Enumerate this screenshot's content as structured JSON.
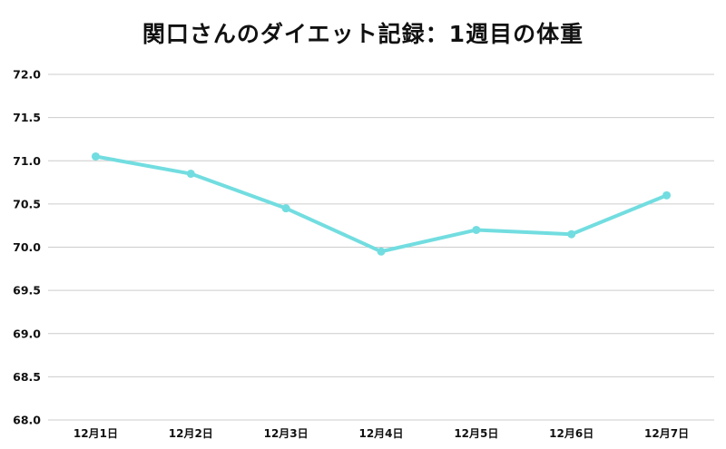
{
  "chart_data": {
    "type": "line",
    "title": "関口さんのダイエット記録：1週目の体重",
    "xlabel": "",
    "ylabel": "",
    "categories": [
      "12月1日",
      "12月2日",
      "12月3日",
      "12月4日",
      "12月5日",
      "12月6日",
      "12月7日"
    ],
    "series": [
      {
        "name": "体重",
        "values": [
          71.05,
          70.85,
          70.45,
          69.95,
          70.2,
          70.15,
          70.6
        ],
        "color": "#72DDE0"
      }
    ],
    "ylim": [
      68.0,
      72.0
    ],
    "yticks": [
      "68.0",
      "68.5",
      "69.0",
      "69.5",
      "70.0",
      "70.5",
      "71.0",
      "71.5",
      "72.0"
    ],
    "grid": true,
    "legend": "none"
  },
  "colors": {
    "line": "#72DDE0",
    "grid": "#cccccc",
    "text": "#111111"
  }
}
